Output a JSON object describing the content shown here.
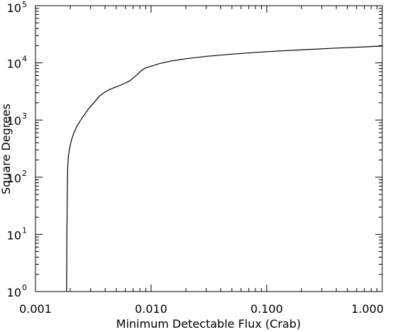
{
  "chart_data": {
    "type": "line",
    "xlabel": "Minimum Detectable Flux (Crab)",
    "ylabel": "Square Degrees",
    "x_scale": "log",
    "y_scale": "log",
    "xlim": [
      0.001,
      1.0
    ],
    "ylim": [
      1,
      100000
    ],
    "x_ticks": [
      {
        "value": 0.001,
        "label": "0.001"
      },
      {
        "value": 0.01,
        "label": "0.010"
      },
      {
        "value": 0.1,
        "label": "0.100"
      },
      {
        "value": 1.0,
        "label": "1.000"
      }
    ],
    "y_ticks": [
      {
        "value": 1,
        "base": "10",
        "exp": "0"
      },
      {
        "value": 10,
        "base": "10",
        "exp": "1"
      },
      {
        "value": 100,
        "base": "10",
        "exp": "2"
      },
      {
        "value": 1000,
        "base": "10",
        "exp": "3"
      },
      {
        "value": 10000,
        "base": "10",
        "exp": "4"
      },
      {
        "value": 100000,
        "base": "10",
        "exp": "5"
      }
    ],
    "grid": false,
    "series": [
      {
        "x": [
          0.00186,
          0.00187,
          0.00188,
          0.00189,
          0.0019,
          0.00193,
          0.00198,
          0.00205,
          0.00215,
          0.0023,
          0.0025,
          0.0027,
          0.0029,
          0.0032,
          0.0036,
          0.004,
          0.0045,
          0.005,
          0.0058,
          0.0066,
          0.0072,
          0.0078,
          0.0083,
          0.0089,
          0.01,
          0.012,
          0.015,
          0.02,
          0.03,
          0.05,
          0.1,
          0.2,
          0.4,
          0.7,
          1.0
        ],
        "y": [
          1,
          10,
          30,
          80,
          150,
          240,
          330,
          450,
          600,
          800,
          1050,
          1300,
          1600,
          2000,
          2650,
          3100,
          3500,
          3800,
          4300,
          4900,
          5700,
          6600,
          7400,
          8100,
          8700,
          9800,
          10800,
          11800,
          13000,
          14200,
          15700,
          16900,
          18100,
          19000,
          19700
        ]
      }
    ]
  }
}
